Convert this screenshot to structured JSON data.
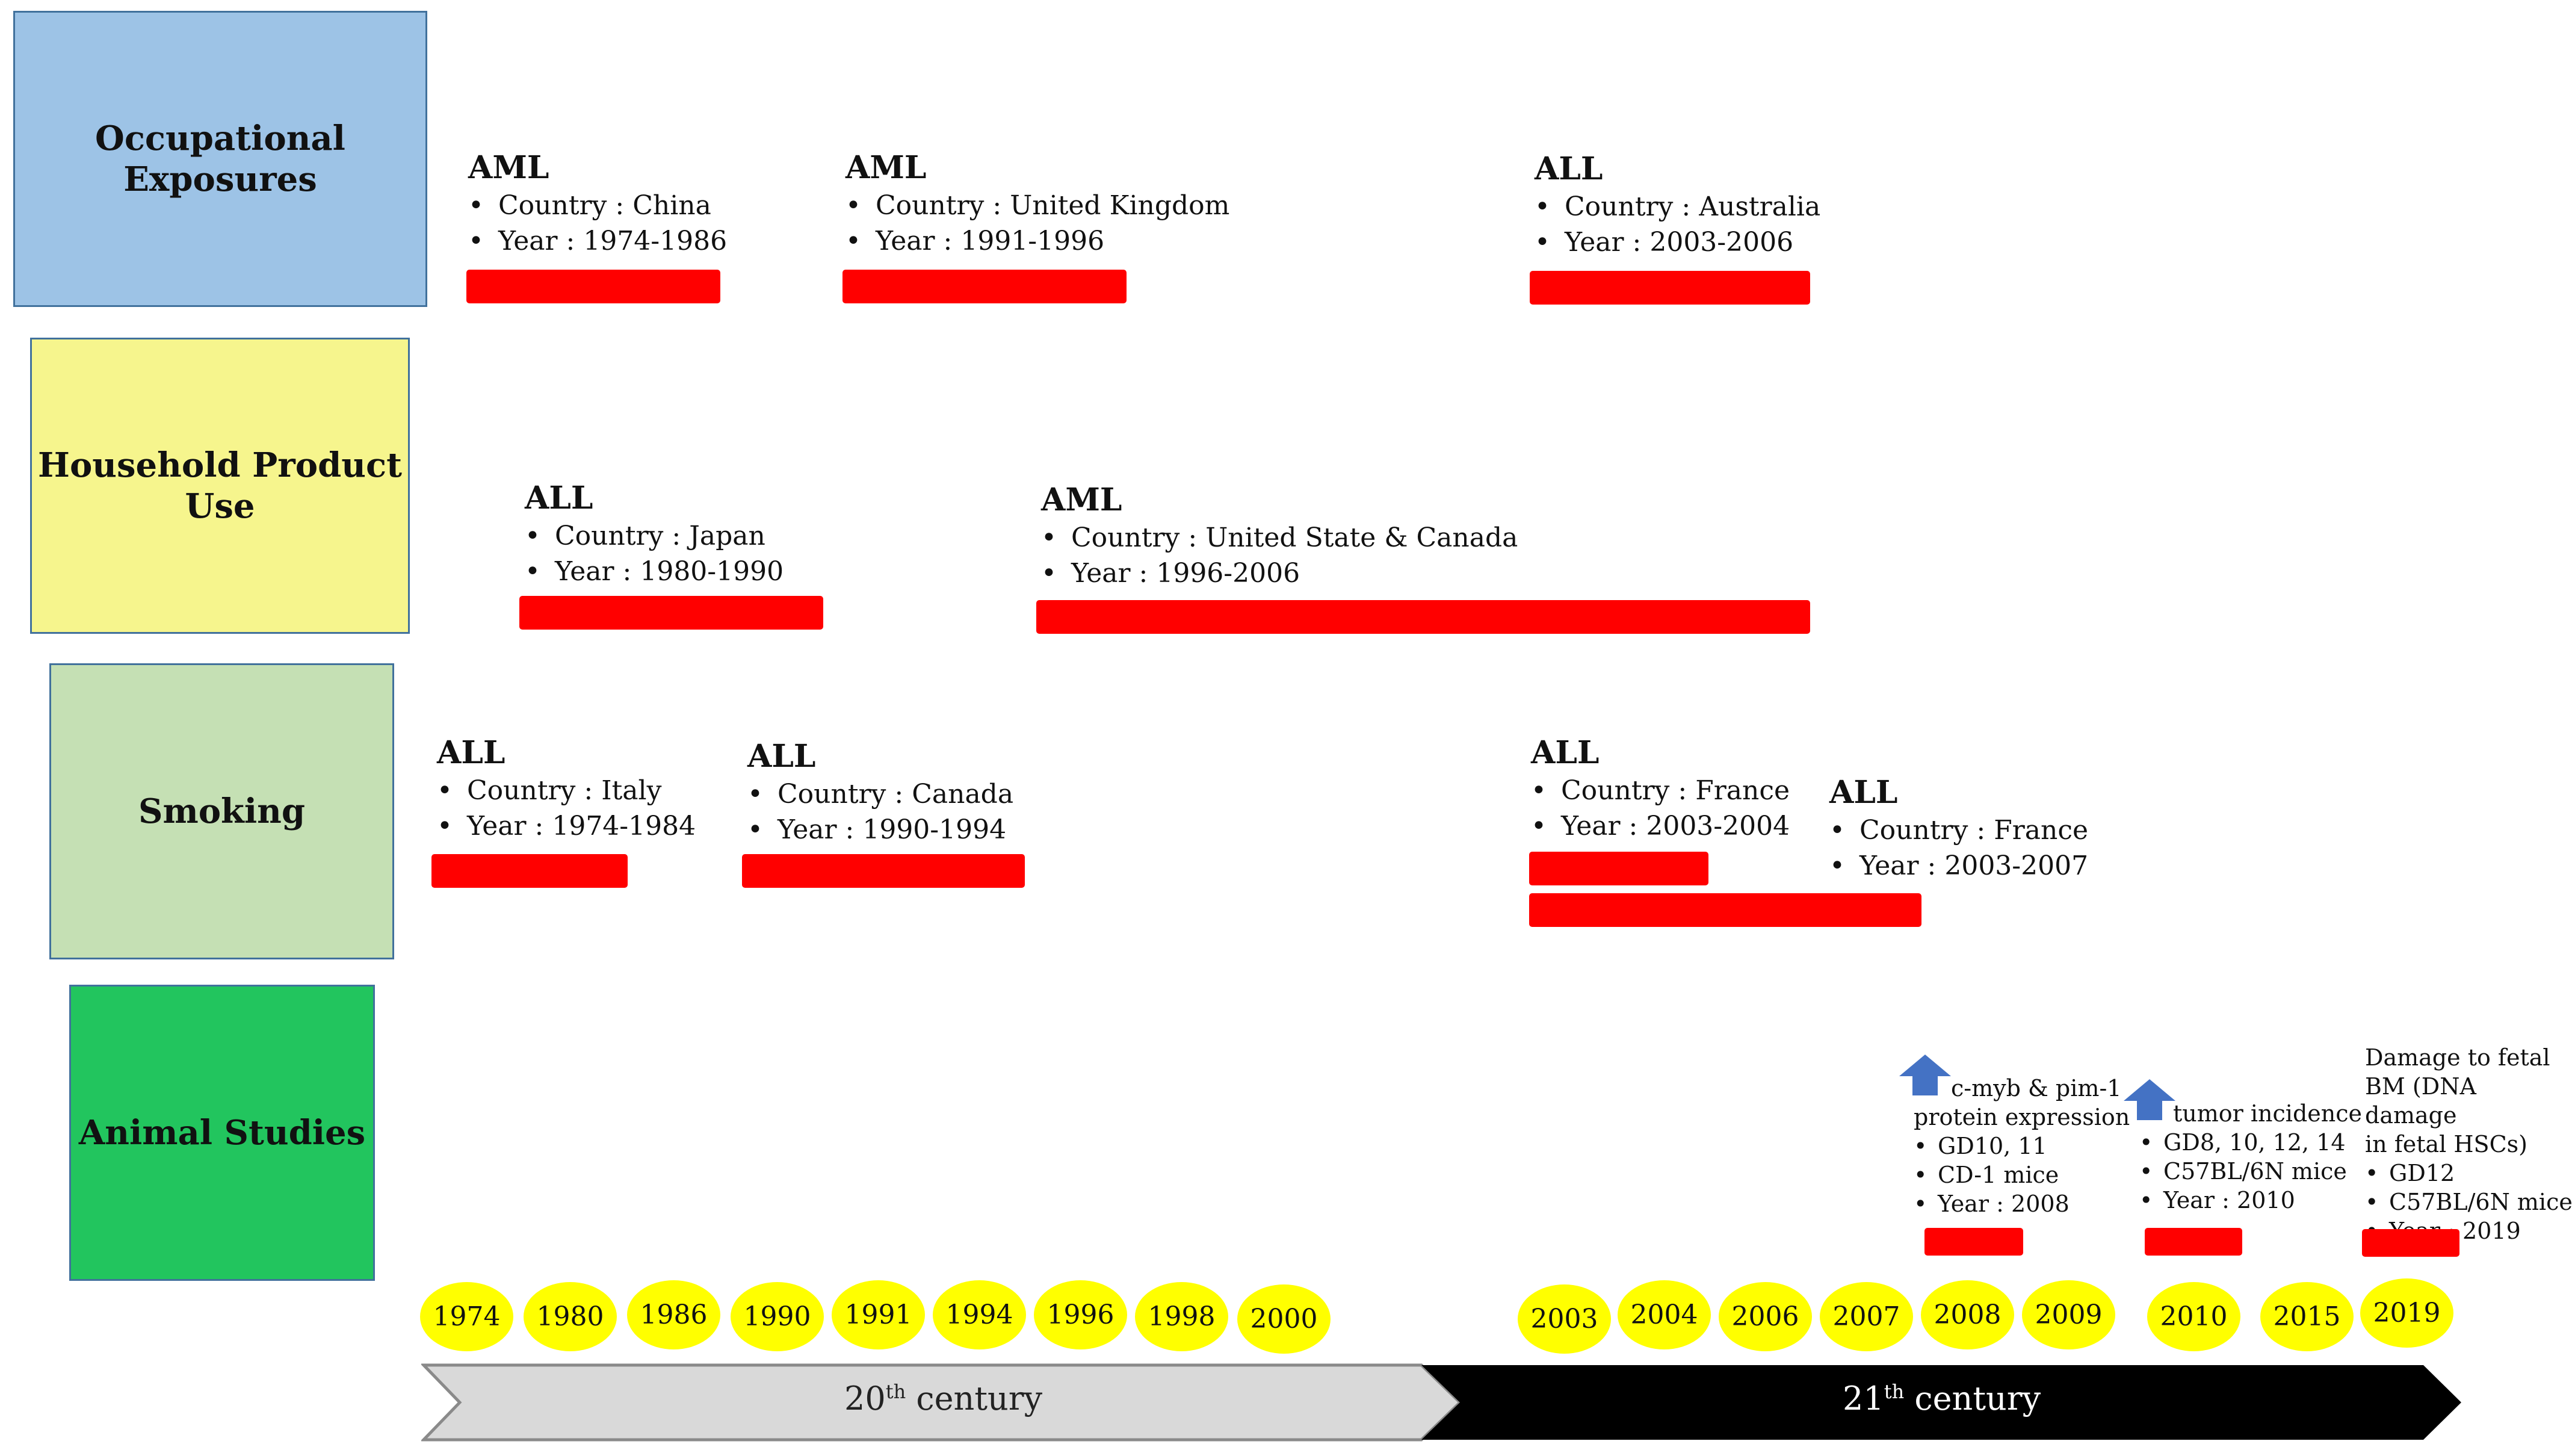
{
  "categories": {
    "occupational": "Occupational Exposures",
    "household_line1": "Household Product",
    "household_line2": "Use",
    "smoking": "Smoking",
    "animal": "Animal Studies"
  },
  "colors": {
    "occupational": "#9dc3e6",
    "household": "#f6f58d",
    "smoking": "#c5e0b4",
    "animal": "#22c55e",
    "bars": "#ff0000",
    "year_bubbles": "#ffff00",
    "arrow_icon": "#4472c4"
  },
  "studies": {
    "occ1": {
      "title": "AML",
      "country": "Country : China",
      "year": "Year : 1974-1986"
    },
    "occ2": {
      "title": "AML",
      "country": "Country : United Kingdom",
      "year": "Year : 1991-1996"
    },
    "occ3": {
      "title": "ALL",
      "country": "Country : Australia",
      "year": "Year : 2003-2006"
    },
    "hh1": {
      "title": "ALL",
      "country": "Country : Japan",
      "year": "Year : 1980-1990"
    },
    "hh2": {
      "title": "AML",
      "country": "Country : United State & Canada",
      "year": "Year : 1996-2006"
    },
    "sm1": {
      "title": "ALL",
      "country": "Country : Italy",
      "year": "Year : 1974-1984"
    },
    "sm2": {
      "title": "ALL",
      "country": "Country : Canada",
      "year": "Year : 1990-1994"
    },
    "sm3": {
      "title": "ALL",
      "country": "Country : France",
      "year": "Year : 2003-2004"
    },
    "sm4": {
      "title": "ALL",
      "country": "Country : France",
      "year": "Year : 2003-2007"
    }
  },
  "animal_studies": {
    "a1": {
      "line1": "c-myb & pim-1",
      "line2": "protein expression",
      "items": [
        "GD10, 11",
        "CD-1 mice",
        "Year : 2008"
      ]
    },
    "a2": {
      "line1": "tumor incidence",
      "items": [
        "GD8, 10, 12, 14",
        "C57BL/6N mice",
        "Year : 2010"
      ]
    },
    "a3": {
      "line1": "Damage to fetal",
      "line2": "BM (DNA damage",
      "line3": "in fetal HSCs)",
      "items": [
        "GD12",
        "C57BL/6N mice",
        "Year : 2019"
      ]
    }
  },
  "years": [
    "1974",
    "1980",
    "1986",
    "1990",
    "1991",
    "1994",
    "1996",
    "1998",
    "2000",
    "2003",
    "2004",
    "2006",
    "2007",
    "2008",
    "2009",
    "2010",
    "2015",
    "2019"
  ],
  "timeline": {
    "c20_num": "20",
    "c20_sup": "th",
    "c20_word": " century",
    "c21_num": "21",
    "c21_sup": "th",
    "c21_word": " century"
  }
}
